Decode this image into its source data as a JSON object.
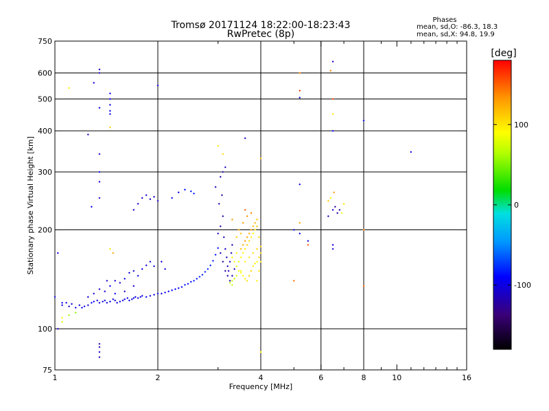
{
  "chart_data": {
    "type": "scatter",
    "title_line1": "Tromsø 20171124 18:22:00-18:23:43",
    "title_line2": "RwPretec (8p)",
    "xlabel": "Frequency [MHz]",
    "ylabel": "Stationary phase Virtual Height [km]",
    "x_scale": "log",
    "y_scale": "log",
    "xlim": [
      1,
      16
    ],
    "ylim": [
      75,
      750
    ],
    "x_ticks": [
      1,
      2,
      4,
      6,
      8,
      10,
      16
    ],
    "x_minor": [
      3,
      5,
      7,
      9,
      11,
      12,
      13,
      14,
      15
    ],
    "y_ticks": [
      75,
      100,
      200,
      300,
      400,
      500,
      600,
      750
    ],
    "grid": true,
    "grid_x": [
      2,
      4,
      6,
      8
    ],
    "grid_y": [
      100,
      200,
      300,
      400,
      500,
      600
    ],
    "legend": {
      "title": "Phases",
      "line1": "mean, sd,O: -86.3, 18.3",
      "line2": "mean, sd,X:  94.8, 19.9"
    },
    "colorbar": {
      "unit": "[deg]",
      "range": [
        -180,
        180
      ],
      "ticks": [
        100,
        0,
        -100
      ]
    },
    "series": [
      {
        "mode": "O",
        "points": [
          [
            1.05,
            118,
            -100
          ],
          [
            1.08,
            120,
            -95
          ],
          [
            1.1,
            117,
            -105
          ],
          [
            1.12,
            119,
            -100
          ],
          [
            1.15,
            116,
            -98
          ],
          [
            1.18,
            118,
            -102
          ],
          [
            1.2,
            116,
            -100
          ],
          [
            1.22,
            117,
            -96
          ],
          [
            1.25,
            118,
            -100
          ],
          [
            1.28,
            120,
            -92
          ],
          [
            1.3,
            121,
            -95
          ],
          [
            1.33,
            122,
            -100
          ],
          [
            1.35,
            120,
            -98
          ],
          [
            1.38,
            121,
            -104
          ],
          [
            1.4,
            122,
            -96
          ],
          [
            1.42,
            120,
            -100
          ],
          [
            1.45,
            121,
            -95
          ],
          [
            1.48,
            123,
            -100
          ],
          [
            1.5,
            122,
            -98
          ],
          [
            1.52,
            120,
            -102
          ],
          [
            1.55,
            121,
            -97
          ],
          [
            1.58,
            122,
            -100
          ],
          [
            1.6,
            123,
            -95
          ],
          [
            1.63,
            124,
            -100
          ],
          [
            1.65,
            122,
            -98
          ],
          [
            1.68,
            123,
            -100
          ],
          [
            1.7,
            124,
            -104
          ],
          [
            1.72,
            125,
            -96
          ],
          [
            1.75,
            124,
            -100
          ],
          [
            1.78,
            125,
            -98
          ],
          [
            1.8,
            126,
            -100
          ],
          [
            1.85,
            125,
            -95
          ],
          [
            1.9,
            126,
            -100
          ],
          [
            1.95,
            127,
            -98
          ],
          [
            2.0,
            128,
            -95
          ],
          [
            2.05,
            128,
            -100
          ],
          [
            2.1,
            129,
            -92
          ],
          [
            2.15,
            130,
            -95
          ],
          [
            2.2,
            131,
            -90
          ],
          [
            2.25,
            132,
            -92
          ],
          [
            2.3,
            133,
            -88
          ],
          [
            2.35,
            134,
            -90
          ],
          [
            2.4,
            136,
            -85
          ],
          [
            2.45,
            137,
            -88
          ],
          [
            2.5,
            139,
            -85
          ],
          [
            2.55,
            140,
            -82
          ],
          [
            2.6,
            142,
            -85
          ],
          [
            2.65,
            144,
            -80
          ],
          [
            2.7,
            146,
            -82
          ],
          [
            2.75,
            149,
            -80
          ],
          [
            2.8,
            152,
            -78
          ],
          [
            2.85,
            156,
            -80
          ],
          [
            2.9,
            161,
            -82
          ],
          [
            2.95,
            168,
            -85
          ],
          [
            3.0,
            176,
            -88
          ],
          [
            1.4,
            130,
            -105
          ],
          [
            1.45,
            135,
            -100
          ],
          [
            1.5,
            140,
            -102
          ],
          [
            1.55,
            138,
            -98
          ],
          [
            1.6,
            142,
            -100
          ],
          [
            1.65,
            148,
            -103
          ],
          [
            1.7,
            150,
            -100
          ],
          [
            1.75,
            145,
            -98
          ],
          [
            1.8,
            152,
            -100
          ],
          [
            1.85,
            156,
            -104
          ],
          [
            1.9,
            160,
            -100
          ],
          [
            1.95,
            155,
            -98
          ],
          [
            2.05,
            160,
            -102
          ],
          [
            2.1,
            152,
            -100
          ],
          [
            1.6,
            130,
            -110
          ],
          [
            1.7,
            135,
            -105
          ],
          [
            1.3,
            128,
            -102
          ],
          [
            1.35,
            132,
            -108
          ],
          [
            1.25,
            125,
            -100
          ],
          [
            1.5,
            128,
            -95
          ],
          [
            1.75,
            240,
            -110
          ],
          [
            1.8,
            250,
            -112
          ],
          [
            1.85,
            255,
            -108
          ],
          [
            1.9,
            248,
            -110
          ],
          [
            1.95,
            252,
            -115
          ],
          [
            1.7,
            230,
            -105
          ],
          [
            2.0,
            245,
            -108
          ],
          [
            2.3,
            260,
            -95
          ],
          [
            2.4,
            265,
            -90
          ],
          [
            2.5,
            262,
            -85
          ],
          [
            2.55,
            258,
            -80
          ],
          [
            2.2,
            250,
            -98
          ],
          [
            3.0,
            195,
            -115
          ],
          [
            3.05,
            205,
            -118
          ],
          [
            3.1,
            220,
            -120
          ],
          [
            3.02,
            240,
            -122
          ],
          [
            3.08,
            255,
            -125
          ],
          [
            3.12,
            190,
            -112
          ],
          [
            3.15,
            175,
            -110
          ],
          [
            3.18,
            165,
            -115
          ],
          [
            3.2,
            155,
            -118
          ],
          [
            3.22,
            150,
            -120
          ],
          [
            3.25,
            160,
            -115
          ],
          [
            3.28,
            170,
            -118
          ],
          [
            3.3,
            180,
            -116
          ],
          [
            3.05,
            170,
            -120
          ],
          [
            3.1,
            160,
            -125
          ],
          [
            3.15,
            150,
            -122
          ],
          [
            3.2,
            145,
            -118
          ],
          [
            3.25,
            140,
            -120
          ],
          [
            3.3,
            145,
            -118
          ],
          [
            3.35,
            152,
            -115
          ],
          [
            3.1,
            300,
            -120
          ],
          [
            3.15,
            310,
            -115
          ],
          [
            3.05,
            290,
            -118
          ],
          [
            2.95,
            270,
            -112
          ],
          [
            1.35,
            600,
            -110
          ],
          [
            1.35,
            615,
            -112
          ],
          [
            1.35,
            300,
            -100
          ],
          [
            1.35,
            280,
            -105
          ],
          [
            1.35,
            250,
            -110
          ],
          [
            1.35,
            340,
            -108
          ],
          [
            1.35,
            470,
            -102
          ],
          [
            1.3,
            560,
            -100
          ],
          [
            1.25,
            390,
            -110
          ],
          [
            1.28,
            235,
            -100
          ],
          [
            1.42,
            140,
            -110
          ],
          [
            1.35,
            90,
            -115
          ],
          [
            1.35,
            88,
            -110
          ],
          [
            1.35,
            85,
            -112
          ],
          [
            1.35,
            82,
            -120
          ],
          [
            1.45,
            520,
            -98
          ],
          [
            1.45,
            500,
            -95
          ],
          [
            1.45,
            480,
            -100
          ],
          [
            1.45,
            460,
            -96
          ],
          [
            1.45,
            450,
            -98
          ],
          [
            2.0,
            550,
            -100
          ],
          [
            3.6,
            380,
            -110
          ],
          [
            5.2,
            505,
            -100
          ],
          [
            5.2,
            275,
            -100
          ],
          [
            6.3,
            220,
            -115
          ],
          [
            6.5,
            230,
            -110
          ],
          [
            6.6,
            235,
            -120
          ],
          [
            6.7,
            225,
            -118
          ],
          [
            6.8,
            230,
            -122
          ],
          [
            6.5,
            650,
            -110
          ],
          [
            6.5,
            180,
            -108
          ],
          [
            6.5,
            175,
            -105
          ],
          [
            6.5,
            400,
            -95
          ],
          [
            11.0,
            345,
            -95
          ],
          [
            8.0,
            430,
            -100
          ],
          [
            5.0,
            200,
            -100
          ],
          [
            5.2,
            195,
            -98
          ],
          [
            5.5,
            185,
            -105
          ],
          [
            1.02,
            100,
            -110
          ],
          [
            1.05,
            120,
            -98
          ],
          [
            1.0,
            125,
            -100
          ],
          [
            1.02,
            170,
            -105
          ]
        ]
      },
      {
        "mode": "X",
        "points": [
          [
            3.45,
            160,
            80
          ],
          [
            3.5,
            165,
            90
          ],
          [
            3.55,
            170,
            95
          ],
          [
            3.6,
            175,
            100
          ],
          [
            3.65,
            180,
            110
          ],
          [
            3.7,
            185,
            105
          ],
          [
            3.75,
            190,
            95
          ],
          [
            3.8,
            195,
            90
          ],
          [
            3.85,
            200,
            100
          ],
          [
            3.9,
            205,
            115
          ],
          [
            3.5,
            150,
            85
          ],
          [
            3.55,
            145,
            90
          ],
          [
            3.6,
            142,
            95
          ],
          [
            3.65,
            140,
            100
          ],
          [
            3.7,
            145,
            105
          ],
          [
            3.75,
            150,
            110
          ],
          [
            3.8,
            155,
            100
          ],
          [
            3.85,
            158,
            95
          ],
          [
            3.9,
            160,
            90
          ],
          [
            3.95,
            165,
            105
          ],
          [
            3.5,
            175,
            120
          ],
          [
            3.55,
            180,
            125
          ],
          [
            3.6,
            185,
            130
          ],
          [
            3.65,
            190,
            128
          ],
          [
            3.7,
            195,
            125
          ],
          [
            3.75,
            200,
            122
          ],
          [
            3.8,
            205,
            120
          ],
          [
            3.85,
            210,
            118
          ],
          [
            3.9,
            215,
            115
          ],
          [
            3.95,
            190,
            110
          ],
          [
            3.4,
            155,
            80
          ],
          [
            3.45,
            150,
            85
          ],
          [
            3.5,
            148,
            90
          ],
          [
            3.3,
            140,
            70
          ],
          [
            3.35,
            142,
            75
          ],
          [
            3.4,
            145,
            78
          ],
          [
            3.25,
            138,
            68
          ],
          [
            3.3,
            136,
            72
          ],
          [
            3.6,
            160,
            95
          ],
          [
            3.7,
            165,
            100
          ],
          [
            3.8,
            170,
            105
          ],
          [
            3.9,
            175,
            108
          ],
          [
            4.0,
            178,
            112
          ],
          [
            4.0,
            160,
            100
          ],
          [
            3.45,
            200,
            125
          ],
          [
            3.55,
            210,
            130
          ],
          [
            3.65,
            220,
            135
          ],
          [
            3.75,
            225,
            140
          ],
          [
            3.6,
            230,
            150
          ],
          [
            3.3,
            215,
            130
          ],
          [
            3.4,
            190,
            110
          ],
          [
            3.5,
            195,
            115
          ],
          [
            3.9,
            140,
            95
          ],
          [
            3.95,
            150,
            100
          ],
          [
            4.0,
            170,
            115
          ],
          [
            3.3,
            165,
            90
          ],
          [
            3.35,
            160,
            88
          ],
          [
            3.4,
            170,
            92
          ],
          [
            1.05,
            105,
            75
          ],
          [
            1.1,
            110,
            60
          ],
          [
            1.15,
            112,
            55
          ],
          [
            1.05,
            108,
            90
          ],
          [
            5.2,
            600,
            140
          ],
          [
            5.2,
            530,
            160
          ],
          [
            6.4,
            610,
            140
          ],
          [
            6.5,
            450,
            100
          ],
          [
            6.4,
            250,
            90
          ],
          [
            6.5,
            500,
            160
          ],
          [
            6.55,
            260,
            130
          ],
          [
            6.3,
            245,
            110
          ],
          [
            7.0,
            240,
            100
          ],
          [
            6.9,
            225,
            85
          ],
          [
            4.0,
            85,
            95
          ],
          [
            4.0,
            330,
            120
          ],
          [
            5.5,
            180,
            150
          ],
          [
            3.0,
            360,
            100
          ],
          [
            3.1,
            340,
            105
          ],
          [
            1.1,
            540,
            95
          ],
          [
            5.0,
            140,
            145
          ],
          [
            5.2,
            210,
            125
          ],
          [
            8.0,
            135,
            150
          ],
          [
            8.0,
            200,
            140
          ],
          [
            1.45,
            410,
            110
          ],
          [
            1.45,
            175,
            100
          ],
          [
            1.48,
            170,
            125
          ]
        ]
      }
    ]
  }
}
